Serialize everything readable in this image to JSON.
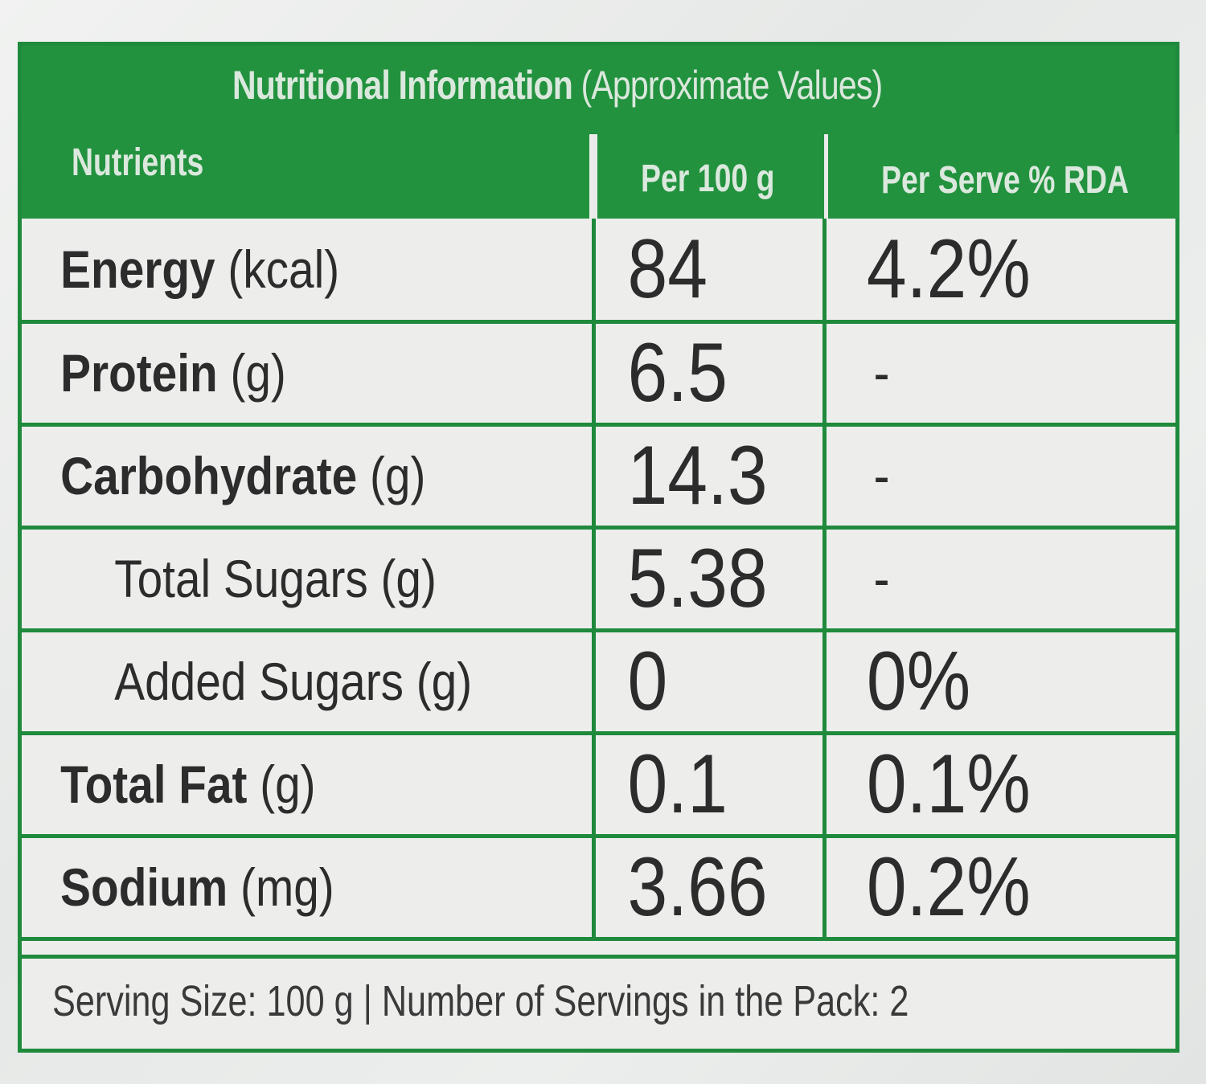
{
  "label": {
    "title_bold": "Nutritional Information",
    "title_light": "(Approximate Values)",
    "columns": {
      "nutrients": "Nutrients",
      "per_100g": "Per 100 g",
      "per_serve_rda": "Per Serve % RDA"
    },
    "rows": [
      {
        "name": "Energy",
        "unit": "(kcal)",
        "per_100g": "84",
        "rda": "4.2%",
        "sub": false
      },
      {
        "name": "Protein",
        "unit": "(g)",
        "per_100g": "6.5",
        "rda": "-",
        "sub": false
      },
      {
        "name": "Carbohydrate",
        "unit": "(g)",
        "per_100g": "14.3",
        "rda": "-",
        "sub": false
      },
      {
        "name": "Total Sugars",
        "unit": "(g)",
        "per_100g": "5.38",
        "rda": "-",
        "sub": true
      },
      {
        "name": "Added Sugars",
        "unit": "(g)",
        "per_100g": "0",
        "rda": "0%",
        "sub": true
      },
      {
        "name": "Total Fat",
        "unit": "(g)",
        "per_100g": "0.1",
        "rda": "0.1%",
        "sub": false
      },
      {
        "name": "Sodium",
        "unit": "(mg)",
        "per_100g": "3.66",
        "rda": "0.2%",
        "sub": false
      }
    ],
    "footer": "Serving Size: 100 g | Number of Servings in the Pack: 2"
  },
  "colors": {
    "border_green": "#1f8a3c",
    "band_green": "#23923f",
    "background": "#ededec",
    "text": "#2c2c2c"
  }
}
